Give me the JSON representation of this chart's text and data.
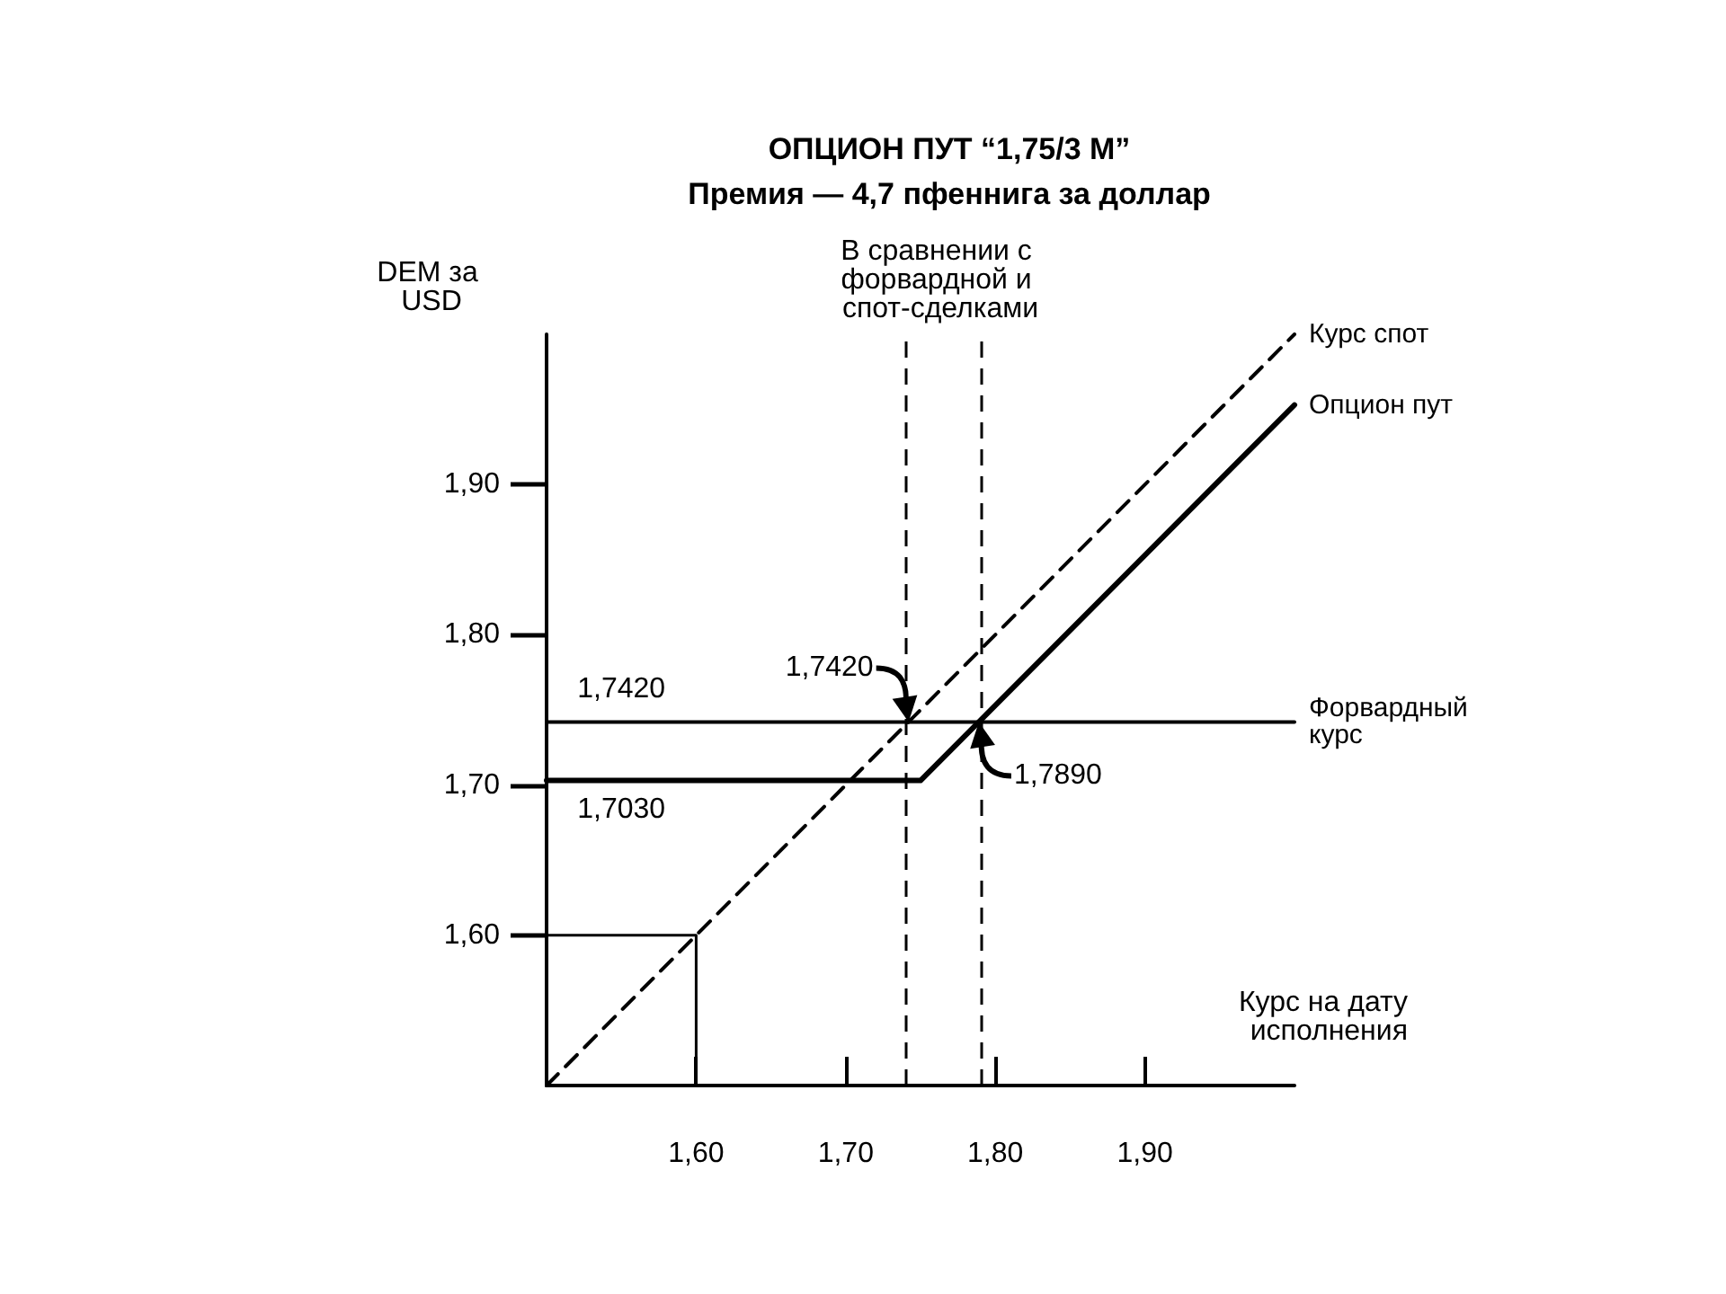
{
  "chart_data": {
    "type": "line",
    "title": "ОПЦИОН ПУТ “1,75/3 М”",
    "subtitle": "Премия — 4,7 пфеннига за доллар",
    "xlabel": "Курс на дату исполнения",
    "ylabel": "DEM за USD",
    "annotations": [
      "В сравнении с форвардной и спот-сделками",
      {
        "text": "1,7420",
        "x": 1.742,
        "y": 1.742
      },
      {
        "text": "1,7890",
        "x": 1.789,
        "y": 1.742
      },
      {
        "text": "1,7420",
        "x": 1.55,
        "y": 1.742
      },
      {
        "text": "1,7030",
        "x": 1.55,
        "y": 1.703
      }
    ],
    "series": [
      {
        "name": "Курс спот",
        "color": "#000000",
        "line_style": "dashed",
        "x": [
          1.5,
          2.0
        ],
        "values": [
          1.5,
          2.0
        ]
      },
      {
        "name": "Опцион пут",
        "color": "#000000",
        "x": [
          1.5,
          1.75,
          2.0
        ],
        "values": [
          1.703,
          1.703,
          1.953
        ]
      },
      {
        "name": "Форвардный курс",
        "color": "#000000",
        "x": [
          1.5,
          2.0
        ],
        "values": [
          1.742,
          1.742
        ]
      },
      {
        "color": "#000000",
        "x": [
          1.5,
          1.6,
          1.6
        ],
        "values": [
          1.6,
          1.6,
          1.5
        ]
      }
    ],
    "ref_lines": [
      {
        "axis": "x",
        "value": 1.742,
        "color": "#000000",
        "line_style": "dashed"
      },
      {
        "axis": "x",
        "value": 1.789,
        "color": "#000000",
        "line_style": "dashed"
      }
    ],
    "xlim": [
      1.5,
      2.0
    ],
    "ylim": [
      1.5,
      2.0
    ],
    "xticks": [
      {
        "value": 1.6,
        "label": "1,60"
      },
      {
        "value": 1.7,
        "label": "1,70"
      },
      {
        "value": 1.8,
        "label": "1,80"
      },
      {
        "value": 1.9,
        "label": "1,90"
      }
    ],
    "yticks": [
      {
        "value": 1.6,
        "label": "1,60"
      },
      {
        "value": 1.7,
        "label": "1,70"
      },
      {
        "value": 1.8,
        "label": "1,80"
      },
      {
        "value": 1.9,
        "label": "1,90"
      }
    ],
    "grid": false,
    "legend": false,
    "marker": "none",
    "line_style": "solid"
  }
}
